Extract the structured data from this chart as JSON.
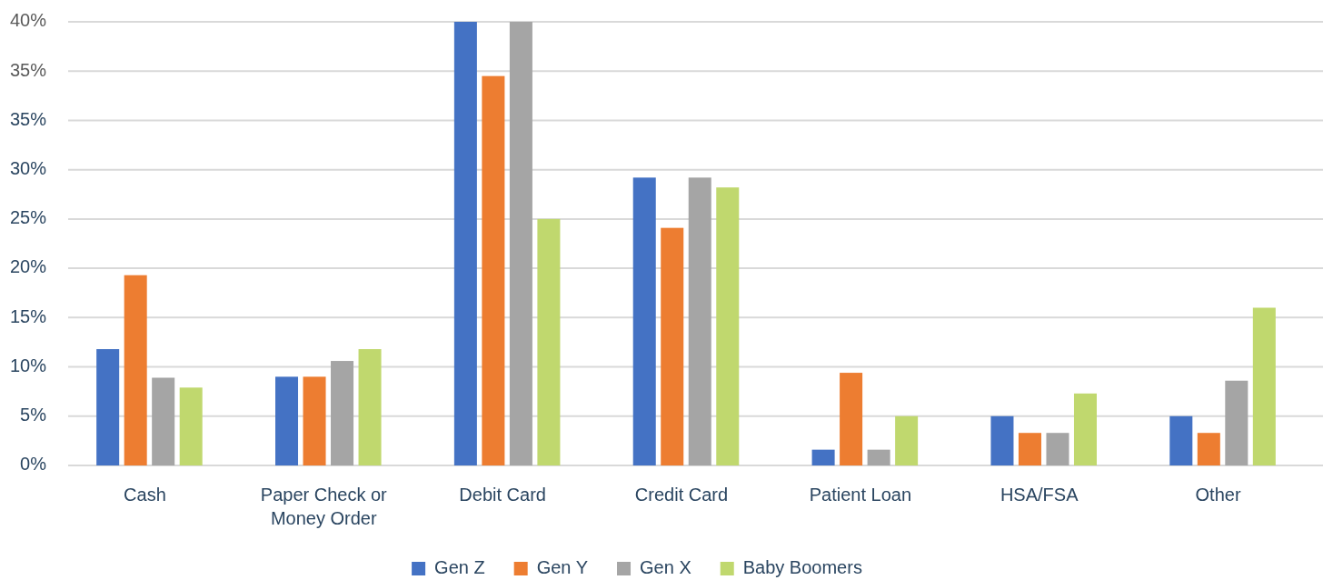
{
  "chart_data": {
    "type": "bar",
    "categories": [
      "Cash",
      "Paper Check or Money Order",
      "Debit Card",
      "Credit Card",
      "Patient Loan",
      "HSA/FSA",
      "Other"
    ],
    "series": [
      {
        "name": "Gen Z",
        "color": "#4472c4",
        "values": [
          11.8,
          9,
          45,
          29.2,
          1.6,
          5,
          5
        ]
      },
      {
        "name": "Gen Y",
        "color": "#ed7d31",
        "values": [
          19.3,
          9,
          39.5,
          24.1,
          9.4,
          3.3,
          3.3
        ]
      },
      {
        "name": "Gen X",
        "color": "#a5a5a5",
        "values": [
          8.9,
          10.6,
          45,
          29.2,
          1.6,
          3.3,
          8.6
        ]
      },
      {
        "name": "Baby Boomers",
        "color": "#c0d86e",
        "values": [
          7.9,
          11.8,
          25,
          28.2,
          5,
          7.3,
          16
        ]
      }
    ],
    "ylim": [
      0,
      45
    ],
    "yticks": [
      {
        "value": 0,
        "label": "0%"
      },
      {
        "value": 5,
        "label": "5%"
      },
      {
        "value": 10,
        "label": "10%"
      },
      {
        "value": 15,
        "label": "15%"
      },
      {
        "value": 20,
        "label": "20%"
      },
      {
        "value": 25,
        "label": "25%"
      },
      {
        "value": 30,
        "label": "30%"
      },
      {
        "value": 35,
        "label": "35%"
      }
    ],
    "y2lim": [
      -5,
      40
    ],
    "y2ticks": [
      {
        "value": 35,
        "label": "35%"
      },
      {
        "value": 40,
        "label": "40%"
      }
    ],
    "grid": "y",
    "legend": "bottom"
  }
}
